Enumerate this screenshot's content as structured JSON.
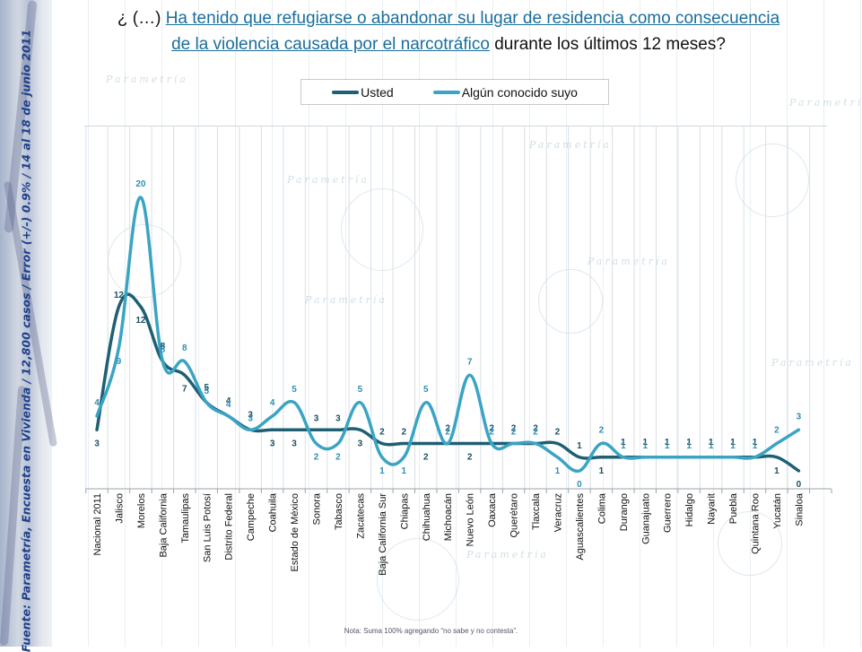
{
  "page": {
    "title_prefix": "¿ (…) ",
    "title_link_line1": "Ha tenido que refugiarse o abandonar su lugar de residencia como consecuencia",
    "title_link_line2": "de la violencia causada por el narcotráfico",
    "title_suffix": " durante los últimos 12 meses?",
    "source_note": "Fuente: Parametría, Encuesta en Vivienda / 12,800 casos / Error (+/-) 0.9% / 14 al 18 de junio 2011",
    "footer_note": "Nota: Suma 100%  agregando “no sabe y no contesta”.",
    "watermark_text": "Parametría",
    "colors": {
      "usted": "#1e5f72",
      "conocido": "#3aa4c4",
      "title_link": "#1a6e9a",
      "source_text": "#1f3f8a"
    }
  },
  "chart_data": {
    "type": "line",
    "title": "¿ (…) Ha tenido que refugiarse o abandonar su lugar de residencia como consecuencia de la violencia causada por el narcotráfico durante los últimos 12 meses?",
    "xlabel": "",
    "ylabel": "",
    "ylim": [
      0,
      20
    ],
    "grid": "vertical",
    "legend_position": "top-center",
    "smooth": true,
    "categories": [
      "Nacional 2011",
      "Jalisco",
      "Morelos",
      "Baja California",
      "Tamaulipas",
      "San Luis Potosí",
      "Distrito Federal",
      "Campeche",
      "Coahuila",
      "Estado de México",
      "Sonora",
      "Tabasco",
      "Zacatecas",
      "Baja California Sur",
      "Chiapas",
      "Chihuahua",
      "Michoacán",
      "Nuevo León",
      "Oaxaca",
      "Querétaro",
      "Tlaxcala",
      "Veracruz",
      "Aguascalientes",
      "Colima",
      "Durango",
      "Guanajuato",
      "Guerrero",
      "Hidalgo",
      "Nayarit",
      "Puebla",
      "Quintana Roo",
      "Yucatán",
      "Sinaloa"
    ],
    "series": [
      {
        "name": "Usted",
        "color": "#1e5f72",
        "values": [
          3,
          12,
          12,
          8,
          7,
          5,
          4,
          3,
          3,
          3,
          3,
          3,
          3,
          2,
          2,
          2,
          2,
          2,
          2,
          2,
          2,
          2,
          1,
          1,
          1,
          1,
          1,
          1,
          1,
          1,
          1,
          1,
          0
        ]
      },
      {
        "name": "Algún conocido suyo",
        "color": "#3aa4c4",
        "values": [
          4,
          9,
          20,
          8,
          8,
          5,
          4,
          3,
          4,
          5,
          2,
          2,
          5,
          1,
          1,
          5,
          2,
          7,
          2,
          2,
          2,
          1,
          0,
          2,
          1,
          1,
          1,
          1,
          1,
          1,
          1,
          2,
          3
        ]
      }
    ]
  }
}
